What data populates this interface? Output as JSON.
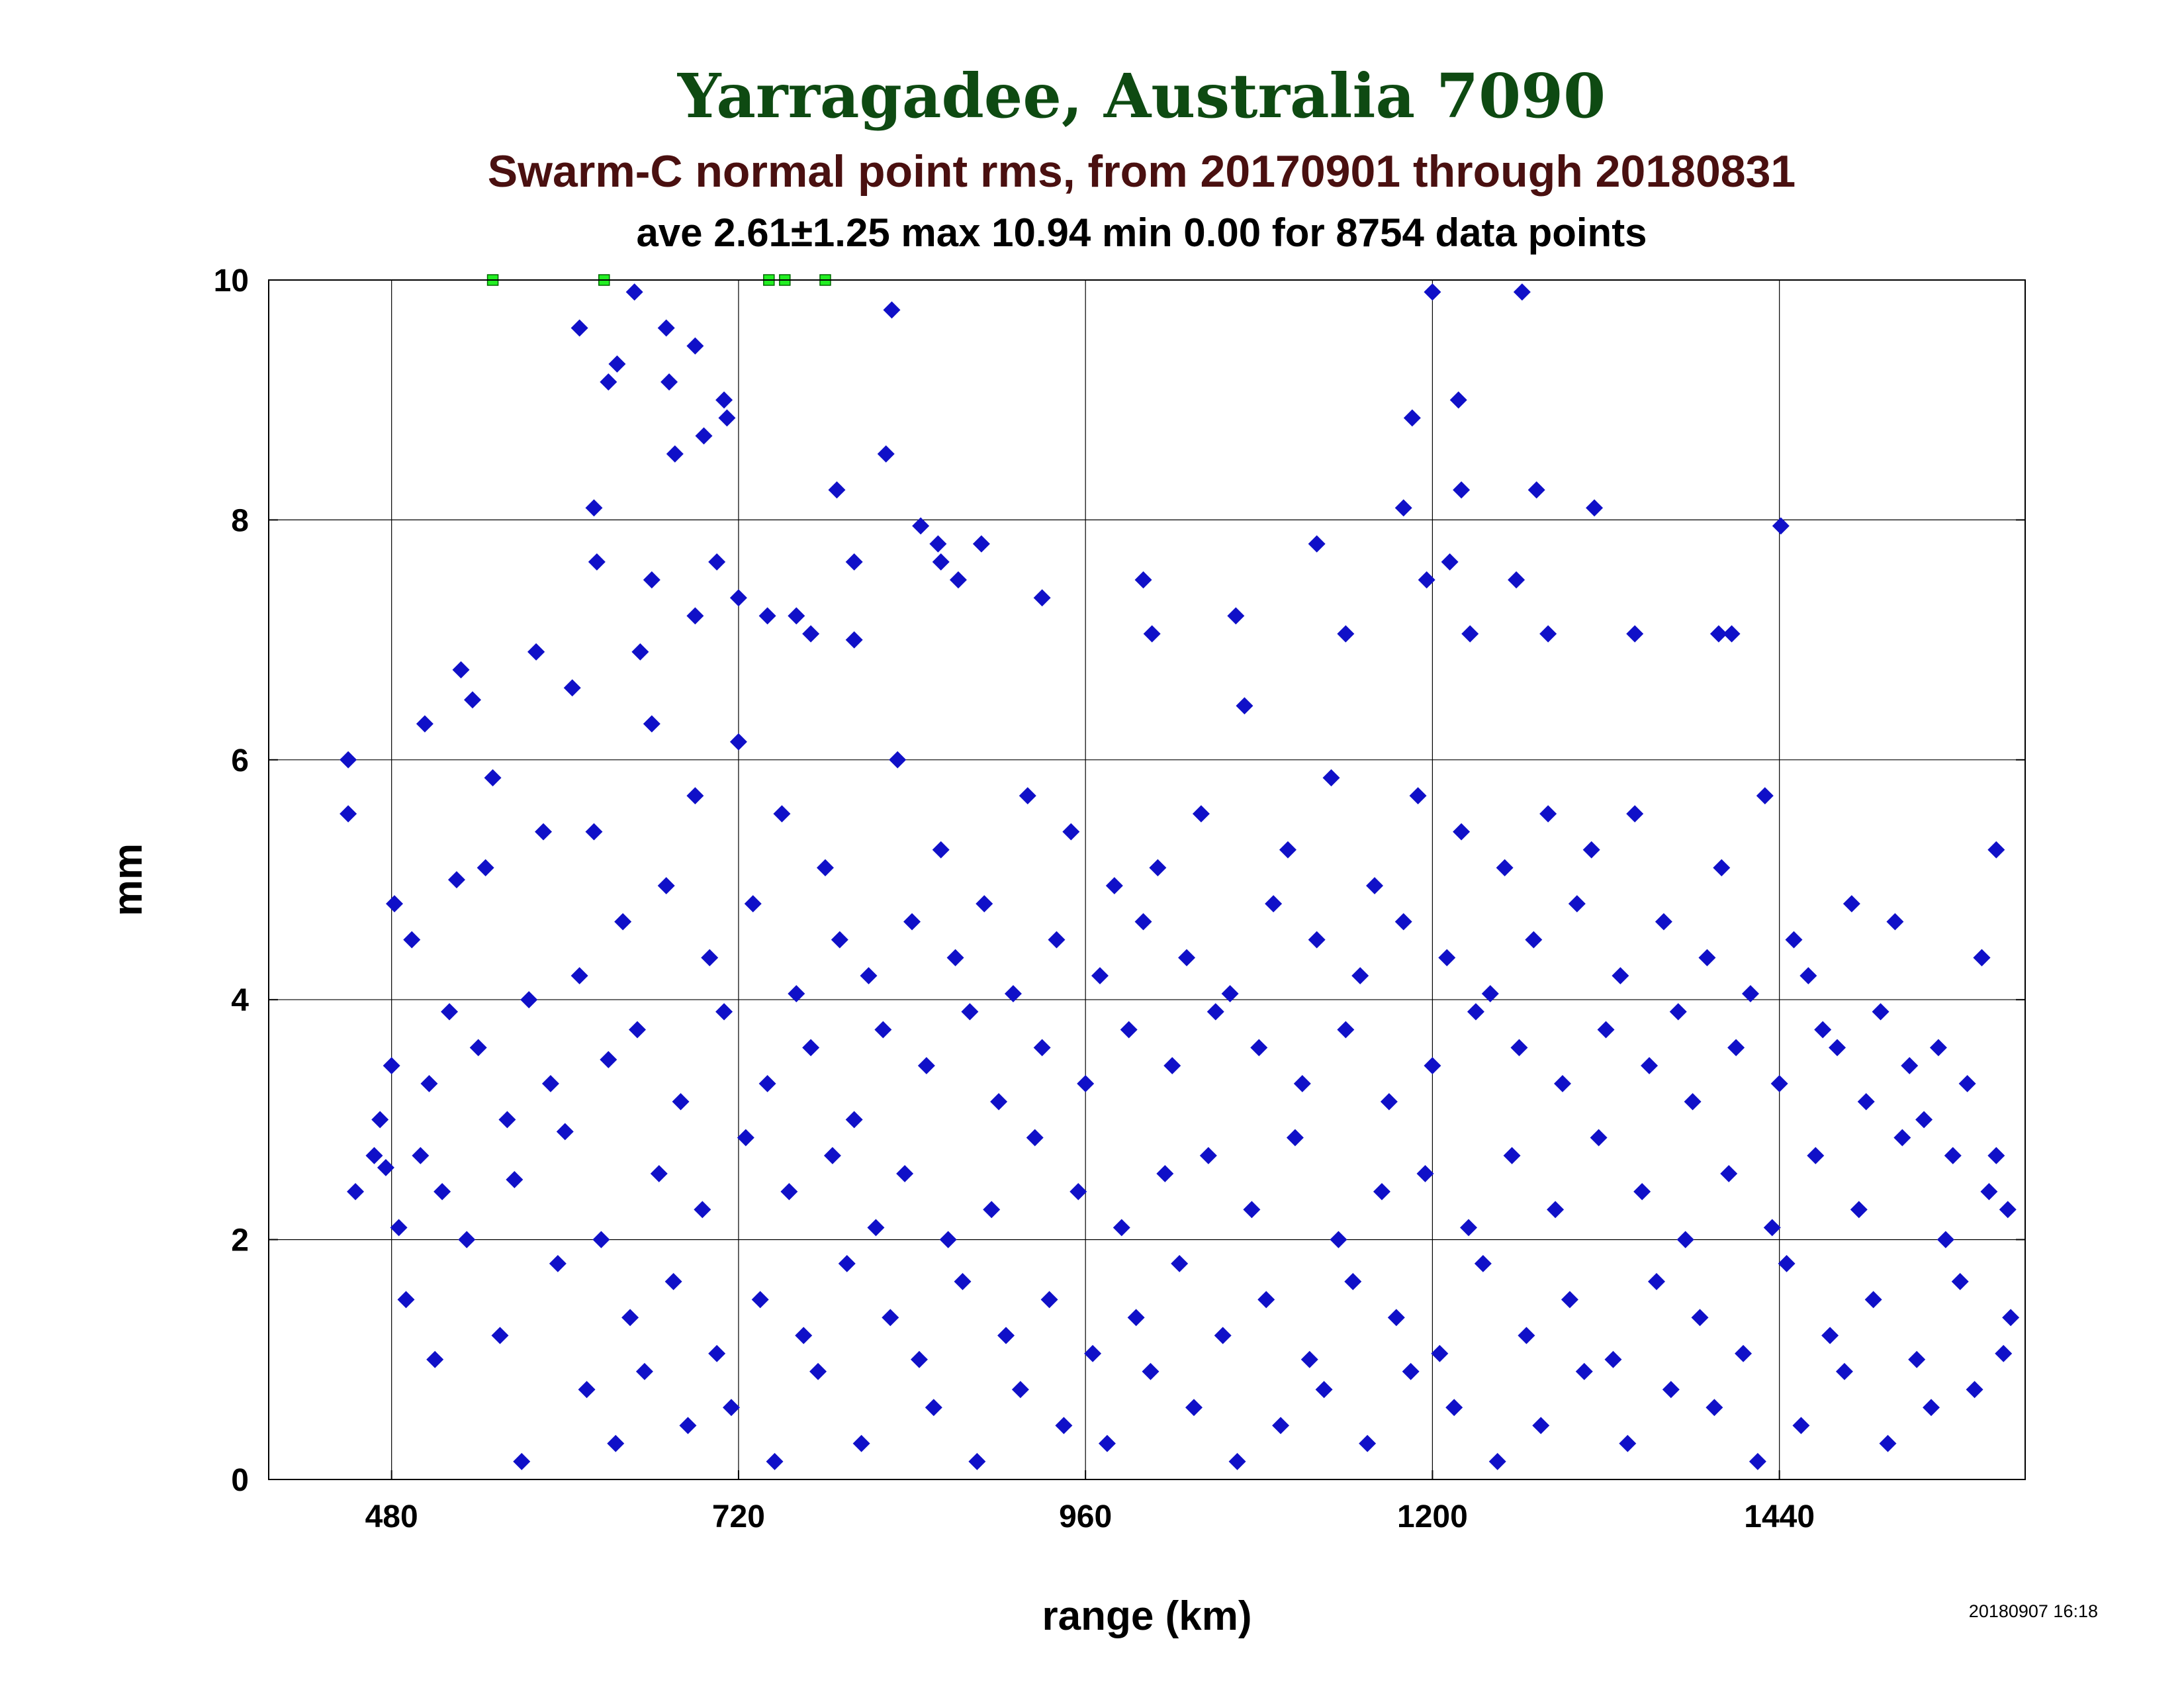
{
  "chart_data": {
    "type": "scatter",
    "title": "Yarragadee, Australia 7090",
    "subtitle": "Swarm-C normal point rms, from 20170901 through 20180831",
    "stats_line": "ave 2.61±1.25 max 10.94 min 0.00 for 8754 data points",
    "xlabel": "range (km)",
    "ylabel": "mm",
    "xlim": [
      395,
      1610
    ],
    "ylim": [
      0,
      10
    ],
    "xticks": [
      480,
      720,
      960,
      1200,
      1440
    ],
    "yticks": [
      0,
      2,
      4,
      6,
      8,
      10
    ],
    "grid": true,
    "timestamp": "20180907 16:18",
    "colors": {
      "points": "#1010c8",
      "clipped": "#22ee22",
      "title": "#0e4a12",
      "subtitle": "#4a1010"
    },
    "series": [
      {
        "marker": "diamond",
        "color": "#1010c8",
        "points": [
          [
            450,
            6.0
          ],
          [
            450,
            5.55
          ],
          [
            455,
            2.4
          ],
          [
            468,
            2.7
          ],
          [
            472,
            3.0
          ],
          [
            476,
            2.6
          ],
          [
            480,
            3.45
          ],
          [
            482,
            4.8
          ],
          [
            485,
            2.1
          ],
          [
            490,
            1.5
          ],
          [
            494,
            4.5
          ],
          [
            500,
            2.7
          ],
          [
            503,
            6.3
          ],
          [
            506,
            3.3
          ],
          [
            510,
            1.0
          ],
          [
            515,
            2.4
          ],
          [
            520,
            3.9
          ],
          [
            525,
            5.0
          ],
          [
            528,
            6.75
          ],
          [
            532,
            2.0
          ],
          [
            536,
            6.5
          ],
          [
            540,
            3.6
          ],
          [
            545,
            5.1
          ],
          [
            550,
            5.85
          ],
          [
            555,
            1.2
          ],
          [
            560,
            3.0
          ],
          [
            565,
            2.5
          ],
          [
            570,
            0.15
          ],
          [
            575,
            4.0
          ],
          [
            580,
            6.9
          ],
          [
            585,
            5.4
          ],
          [
            590,
            3.3
          ],
          [
            595,
            1.8
          ],
          [
            600,
            2.9
          ],
          [
            605,
            6.6
          ],
          [
            610,
            4.2
          ],
          [
            615,
            0.75
          ],
          [
            620,
            5.4
          ],
          [
            625,
            2.0
          ],
          [
            630,
            3.5
          ],
          [
            635,
            0.3
          ],
          [
            640,
            4.65
          ],
          [
            645,
            1.35
          ],
          [
            650,
            3.75
          ],
          [
            655,
            0.9
          ],
          [
            660,
            6.3
          ],
          [
            665,
            2.55
          ],
          [
            670,
            4.95
          ],
          [
            675,
            1.65
          ],
          [
            680,
            3.15
          ],
          [
            685,
            0.45
          ],
          [
            690,
            5.7
          ],
          [
            695,
            2.25
          ],
          [
            700,
            4.35
          ],
          [
            705,
            1.05
          ],
          [
            710,
            3.9
          ],
          [
            715,
            0.6
          ],
          [
            720,
            6.15
          ],
          [
            725,
            2.85
          ],
          [
            730,
            4.8
          ],
          [
            735,
            1.5
          ],
          [
            740,
            3.3
          ],
          [
            745,
            0.15
          ],
          [
            750,
            5.55
          ],
          [
            755,
            2.4
          ],
          [
            760,
            4.05
          ],
          [
            765,
            1.2
          ],
          [
            770,
            3.6
          ],
          [
            775,
            0.9
          ],
          [
            780,
            5.1
          ],
          [
            785,
            2.7
          ],
          [
            790,
            4.5
          ],
          [
            795,
            1.8
          ],
          [
            800,
            3.0
          ],
          [
            805,
            0.3
          ],
          [
            810,
            4.2
          ],
          [
            815,
            2.1
          ],
          [
            820,
            3.75
          ],
          [
            825,
            1.35
          ],
          [
            830,
            6.0
          ],
          [
            835,
            2.55
          ],
          [
            840,
            4.65
          ],
          [
            845,
            1.0
          ],
          [
            850,
            3.45
          ],
          [
            855,
            0.6
          ],
          [
            860,
            5.25
          ],
          [
            865,
            2.0
          ],
          [
            870,
            4.35
          ],
          [
            875,
            1.65
          ],
          [
            880,
            3.9
          ],
          [
            885,
            0.15
          ],
          [
            890,
            4.8
          ],
          [
            895,
            2.25
          ],
          [
            900,
            3.15
          ],
          [
            905,
            1.2
          ],
          [
            910,
            4.05
          ],
          [
            915,
            0.75
          ],
          [
            920,
            5.7
          ],
          [
            925,
            2.85
          ],
          [
            930,
            3.6
          ],
          [
            935,
            1.5
          ],
          [
            940,
            4.5
          ],
          [
            945,
            0.45
          ],
          [
            950,
            5.4
          ],
          [
            955,
            2.4
          ],
          [
            960,
            3.3
          ],
          [
            965,
            1.05
          ],
          [
            970,
            4.2
          ],
          [
            975,
            0.3
          ],
          [
            980,
            4.95
          ],
          [
            985,
            2.1
          ],
          [
            990,
            3.75
          ],
          [
            995,
            1.35
          ],
          [
            1000,
            4.65
          ],
          [
            1005,
            0.9
          ],
          [
            1010,
            5.1
          ],
          [
            1015,
            2.55
          ],
          [
            1020,
            3.45
          ],
          [
            1025,
            1.8
          ],
          [
            1030,
            4.35
          ],
          [
            1035,
            0.6
          ],
          [
            1040,
            5.55
          ],
          [
            1045,
            2.7
          ],
          [
            1050,
            3.9
          ],
          [
            1055,
            1.2
          ],
          [
            1060,
            4.05
          ],
          [
            1065,
            0.15
          ],
          [
            1070,
            6.45
          ],
          [
            1075,
            2.25
          ],
          [
            1080,
            3.6
          ],
          [
            1085,
            1.5
          ],
          [
            1090,
            4.8
          ],
          [
            1095,
            0.45
          ],
          [
            1100,
            5.25
          ],
          [
            1105,
            2.85
          ],
          [
            1110,
            3.3
          ],
          [
            1115,
            1.0
          ],
          [
            1120,
            4.5
          ],
          [
            1125,
            0.75
          ],
          [
            1130,
            5.85
          ],
          [
            1135,
            2.0
          ],
          [
            1140,
            3.75
          ],
          [
            1145,
            1.65
          ],
          [
            1150,
            4.2
          ],
          [
            1155,
            0.3
          ],
          [
            1160,
            4.95
          ],
          [
            1165,
            2.4
          ],
          [
            1170,
            3.15
          ],
          [
            1175,
            1.35
          ],
          [
            1180,
            4.65
          ],
          [
            1185,
            0.9
          ],
          [
            1190,
            5.7
          ],
          [
            1195,
            2.55
          ],
          [
            1200,
            3.45
          ],
          [
            1205,
            1.05
          ],
          [
            1210,
            4.35
          ],
          [
            1215,
            0.6
          ],
          [
            1220,
            5.4
          ],
          [
            1225,
            2.1
          ],
          [
            1230,
            3.9
          ],
          [
            1235,
            1.8
          ],
          [
            1240,
            4.05
          ],
          [
            1245,
            0.15
          ],
          [
            1250,
            5.1
          ],
          [
            1255,
            2.7
          ],
          [
            1260,
            3.6
          ],
          [
            1265,
            1.2
          ],
          [
            1270,
            4.5
          ],
          [
            1275,
            0.45
          ],
          [
            1280,
            5.55
          ],
          [
            1285,
            2.25
          ],
          [
            1290,
            3.3
          ],
          [
            1295,
            1.5
          ],
          [
            1300,
            4.8
          ],
          [
            1305,
            0.9
          ],
          [
            1310,
            5.25
          ],
          [
            1315,
            2.85
          ],
          [
            1320,
            3.75
          ],
          [
            1325,
            1.0
          ],
          [
            1330,
            4.2
          ],
          [
            1335,
            0.3
          ],
          [
            1340,
            5.55
          ],
          [
            1345,
            2.4
          ],
          [
            1350,
            3.45
          ],
          [
            1355,
            1.65
          ],
          [
            1360,
            4.65
          ],
          [
            1365,
            0.75
          ],
          [
            1370,
            3.9
          ],
          [
            1375,
            2.0
          ],
          [
            1380,
            3.15
          ],
          [
            1385,
            1.35
          ],
          [
            1390,
            4.35
          ],
          [
            1395,
            0.6
          ],
          [
            1400,
            5.1
          ],
          [
            1405,
            2.55
          ],
          [
            1410,
            3.6
          ],
          [
            1415,
            1.05
          ],
          [
            1420,
            4.05
          ],
          [
            1425,
            0.15
          ],
          [
            1430,
            5.7
          ],
          [
            1435,
            2.1
          ],
          [
            1440,
            3.3
          ],
          [
            1445,
            1.8
          ],
          [
            1450,
            4.5
          ],
          [
            1455,
            0.45
          ],
          [
            1460,
            4.2
          ],
          [
            1465,
            2.7
          ],
          [
            1470,
            3.75
          ],
          [
            1475,
            1.2
          ],
          [
            1480,
            3.6
          ],
          [
            1485,
            0.9
          ],
          [
            1490,
            4.8
          ],
          [
            1495,
            2.25
          ],
          [
            1500,
            3.15
          ],
          [
            1505,
            1.5
          ],
          [
            1510,
            3.9
          ],
          [
            1515,
            0.3
          ],
          [
            1520,
            4.65
          ],
          [
            1525,
            2.85
          ],
          [
            1530,
            3.45
          ],
          [
            1535,
            1.0
          ],
          [
            1540,
            3.0
          ],
          [
            1545,
            0.6
          ],
          [
            1550,
            3.6
          ],
          [
            1555,
            2.0
          ],
          [
            1560,
            2.7
          ],
          [
            1565,
            1.65
          ],
          [
            1570,
            3.3
          ],
          [
            1575,
            0.75
          ],
          [
            1580,
            4.35
          ],
          [
            1585,
            2.4
          ],
          [
            1590,
            2.7
          ],
          [
            1595,
            1.05
          ],
          [
            1600,
            1.35
          ],
          [
            1598,
            2.25
          ],
          [
            1590,
            5.25
          ],
          [
            1580,
            4.35
          ],
          [
            610,
            9.6
          ],
          [
            620,
            8.1
          ],
          [
            622,
            7.65
          ],
          [
            630,
            9.15
          ],
          [
            636,
            9.3
          ],
          [
            648,
            9.9
          ],
          [
            670,
            9.6
          ],
          [
            672,
            9.15
          ],
          [
            676,
            8.55
          ],
          [
            690,
            9.45
          ],
          [
            696,
            8.7
          ],
          [
            710,
            9.0
          ],
          [
            712,
            8.85
          ],
          [
            705,
            7.65
          ],
          [
            788,
            8.25
          ],
          [
            800,
            7.65
          ],
          [
            826,
            9.75
          ],
          [
            822,
            8.55
          ],
          [
            846,
            7.95
          ],
          [
            858,
            7.8
          ],
          [
            888,
            7.8
          ],
          [
            860,
            7.65
          ],
          [
            872,
            7.5
          ],
          [
            930,
            7.35
          ],
          [
            1000,
            7.5
          ],
          [
            1120,
            7.8
          ],
          [
            1180,
            8.1
          ],
          [
            1186,
            8.85
          ],
          [
            1200,
            9.9
          ],
          [
            1212,
            7.65
          ],
          [
            1218,
            9.0
          ],
          [
            1220,
            8.25
          ],
          [
            1258,
            7.5
          ],
          [
            1262,
            9.9
          ],
          [
            1272,
            8.25
          ],
          [
            1312,
            8.1
          ],
          [
            1441,
            7.95
          ],
          [
            1196,
            7.5
          ],
          [
            1006,
            7.05
          ],
          [
            1064,
            7.2
          ],
          [
            1140,
            7.05
          ],
          [
            1226,
            7.05
          ],
          [
            1280,
            7.05
          ],
          [
            1340,
            7.05
          ],
          [
            1398,
            7.05
          ],
          [
            1407,
            7.05
          ],
          [
            740,
            7.2
          ],
          [
            770,
            7.05
          ],
          [
            580,
            6.9
          ],
          [
            652,
            6.9
          ],
          [
            660,
            7.5
          ],
          [
            690,
            7.2
          ],
          [
            720,
            7.35
          ],
          [
            760,
            7.2
          ],
          [
            800,
            7.0
          ]
        ]
      }
    ],
    "clipped_series": {
      "marker": "square",
      "color": "#22ee22",
      "points": [
        [
          550,
          10.94
        ],
        [
          627,
          10.94
        ],
        [
          741,
          10.94
        ],
        [
          752,
          10.94
        ],
        [
          780,
          10.94
        ]
      ]
    }
  }
}
